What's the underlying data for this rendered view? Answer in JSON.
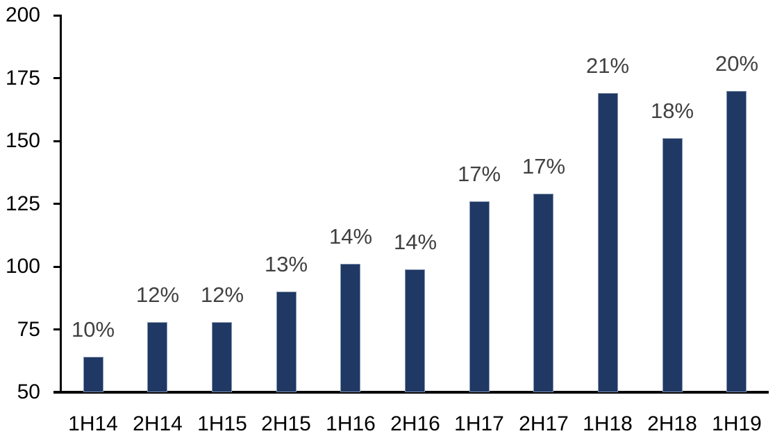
{
  "chart_data": {
    "type": "bar",
    "title": "",
    "xlabel": "",
    "ylabel": "",
    "categories": [
      "1H14",
      "2H14",
      "1H15",
      "2H15",
      "1H16",
      "2H16",
      "1H17",
      "2H17",
      "1H18",
      "2H18",
      "1H19"
    ],
    "values": [
      64,
      78,
      78,
      90,
      101,
      99,
      126,
      129,
      169,
      151,
      170
    ],
    "value_labels": [
      "10%",
      "12%",
      "12%",
      "13%",
      "14%",
      "14%",
      "17%",
      "17%",
      "21%",
      "18%",
      "20%"
    ],
    "ylim": [
      50,
      200
    ],
    "yticks": [
      50,
      75,
      100,
      125,
      150,
      175,
      200
    ],
    "grid": false,
    "legend": "none",
    "bar_color": "#1F3864",
    "bar_border_color": "#8496B0",
    "value_label_color": "#404040",
    "axis_color": "#000000",
    "tick_label_color": "#000000"
  }
}
